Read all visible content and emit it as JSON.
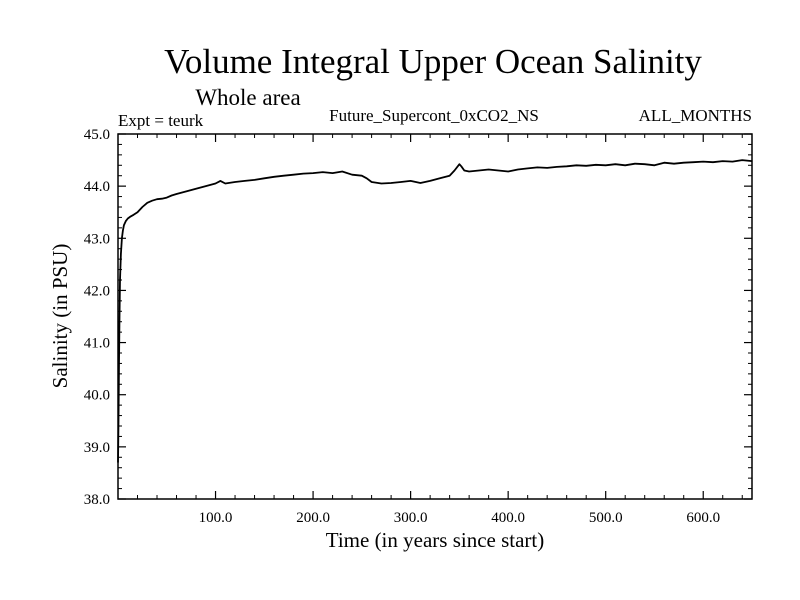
{
  "chart_data": {
    "type": "line",
    "title": "Volume Integral Upper Ocean Salinity",
    "subtitle": "Whole area",
    "left_label": "Expt = teurk",
    "center_label": "Future_Supercont_0xCO2_NS",
    "right_label": "ALL_MONTHS",
    "xlabel": "Time (in years since start)",
    "ylabel": "Salinity (in PSU)",
    "xlim": [
      0,
      650
    ],
    "ylim": [
      38.0,
      45.0
    ],
    "x_ticks": [
      100,
      200,
      300,
      400,
      500,
      600
    ],
    "x_tick_labels": [
      "100.0",
      "200.0",
      "300.0",
      "400.0",
      "500.0",
      "600.0"
    ],
    "y_ticks": [
      38,
      39,
      40,
      41,
      42,
      43,
      44,
      45
    ],
    "y_tick_labels": [
      "38.0",
      "39.0",
      "40.0",
      "41.0",
      "42.0",
      "43.0",
      "44.0",
      "45.0"
    ],
    "grid": false,
    "series": [
      {
        "color": "#000000",
        "x": [
          0,
          0.5,
          1,
          1.5,
          2,
          3,
          4,
          5,
          6,
          8,
          10,
          13,
          16,
          20,
          25,
          30,
          35,
          40,
          45,
          50,
          55,
          60,
          70,
          80,
          90,
          100,
          105,
          110,
          120,
          130,
          140,
          150,
          160,
          170,
          180,
          190,
          200,
          210,
          220,
          230,
          240,
          250,
          255,
          260,
          270,
          280,
          290,
          300,
          310,
          320,
          330,
          340,
          345,
          350,
          352,
          355,
          360,
          370,
          380,
          390,
          400,
          410,
          420,
          430,
          440,
          450,
          460,
          470,
          480,
          490,
          500,
          510,
          520,
          530,
          540,
          550,
          560,
          570,
          580,
          590,
          600,
          610,
          620,
          630,
          640,
          650
        ],
        "y": [
          38.7,
          39.5,
          40.6,
          41.5,
          42.2,
          42.7,
          43.0,
          43.15,
          43.25,
          43.33,
          43.38,
          43.42,
          43.45,
          43.5,
          43.6,
          43.68,
          43.72,
          43.75,
          43.76,
          43.78,
          43.82,
          43.85,
          43.9,
          43.95,
          44.0,
          44.05,
          44.1,
          44.05,
          44.08,
          44.1,
          44.12,
          44.15,
          44.18,
          44.2,
          44.22,
          44.24,
          44.25,
          44.27,
          44.25,
          44.28,
          44.22,
          44.2,
          44.15,
          44.08,
          44.05,
          44.06,
          44.08,
          44.1,
          44.06,
          44.1,
          44.15,
          44.2,
          44.3,
          44.42,
          44.38,
          44.3,
          44.28,
          44.3,
          44.32,
          44.3,
          44.28,
          44.32,
          44.34,
          44.36,
          44.35,
          44.37,
          44.38,
          44.4,
          44.39,
          44.41,
          44.4,
          44.42,
          44.4,
          44.43,
          44.42,
          44.4,
          44.45,
          44.43,
          44.45,
          44.46,
          44.47,
          44.46,
          44.48,
          44.47,
          44.5,
          44.48
        ]
      }
    ]
  }
}
